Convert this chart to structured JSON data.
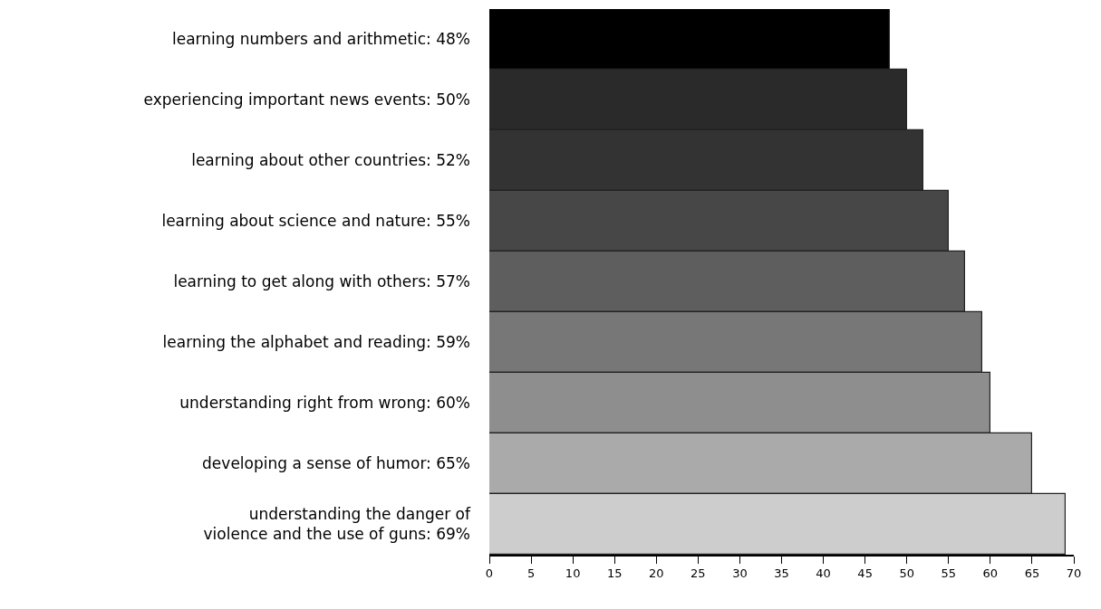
{
  "chart_data": {
    "type": "bar",
    "orientation": "horizontal",
    "categories": [
      "learning numbers and arithmetic: 48%",
      "experiencing important news events: 50%",
      "learning about other countries: 52%",
      "learning about science and nature: 55%",
      "learning to get along with others: 57%",
      "learning the alphabet and reading: 59%",
      "understanding right from wrong: 60%",
      "developing a sense of humor: 65%",
      "understanding the danger of\nviolence and the use of guns: 69%"
    ],
    "values": [
      48,
      50,
      52,
      55,
      57,
      59,
      60,
      65,
      69
    ],
    "colors": [
      "#000000",
      "#2a2a2a",
      "#333333",
      "#474747",
      "#5e5e5e",
      "#777777",
      "#8e8e8e",
      "#aaaaaa",
      "#cdcdcd"
    ],
    "xlim": [
      0,
      70
    ],
    "xticks": [
      0,
      5,
      10,
      15,
      20,
      25,
      30,
      35,
      40,
      45,
      50,
      55,
      60,
      65,
      70
    ],
    "grid": false,
    "legend": false
  }
}
